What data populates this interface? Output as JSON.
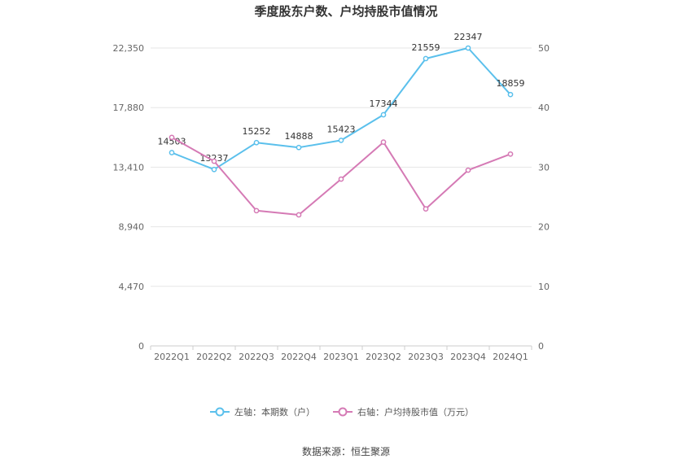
{
  "chart_data": {
    "type": "line",
    "title": "季度股东户数、户均持股市值情况",
    "categories": [
      "2022Q1",
      "2022Q2",
      "2022Q3",
      "2022Q4",
      "2023Q1",
      "2023Q2",
      "2023Q3",
      "2023Q4",
      "2024Q1"
    ],
    "left_axis": {
      "ticks": [
        "0",
        "4,470",
        "8,940",
        "13,410",
        "17,880",
        "22,350"
      ],
      "min": 0,
      "max": 22350
    },
    "right_axis": {
      "ticks": [
        "0",
        "10",
        "20",
        "30",
        "40",
        "50"
      ],
      "min": 0,
      "max": 50
    },
    "series": [
      {
        "name": "左轴：本期数（户）",
        "axis": "left",
        "color": "#5bc0ec",
        "values": [
          14503,
          13237,
          15252,
          14888,
          15423,
          17344,
          21559,
          22347,
          18859
        ],
        "labels": [
          "14503",
          "13237",
          "15252",
          "14888",
          "15423",
          "17344",
          "21559",
          "22347",
          "18859"
        ]
      },
      {
        "name": "右轴：户均持股市值（万元）",
        "axis": "right",
        "color": "#d57ab5",
        "values": [
          35.0,
          31.0,
          22.7,
          22.0,
          28.0,
          34.2,
          23.0,
          29.5,
          32.2
        ]
      }
    ],
    "grid": true,
    "legend_position": "bottom"
  },
  "source": "数据来源：恒生聚源"
}
